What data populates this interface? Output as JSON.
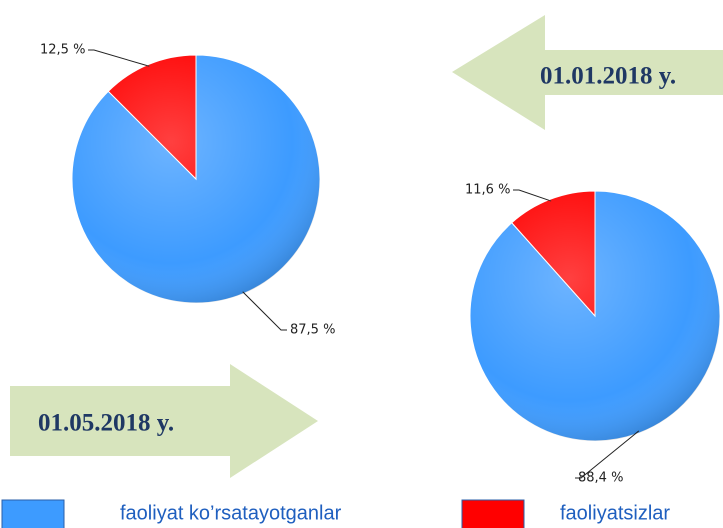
{
  "chart_data": [
    {
      "type": "pie",
      "annotation": "01.05.2018 y.",
      "values": [
        87.5,
        12.5
      ],
      "value_labels": [
        "87,5 %",
        "12,5 %"
      ]
    },
    {
      "type": "pie",
      "annotation": "01.01.2018 y.",
      "values": [
        88.4,
        11.6
      ],
      "value_labels": [
        "88,4 %",
        "11,6 %"
      ]
    }
  ],
  "legend": {
    "labels": [
      "faoliyat ko’rsatayotganlar",
      "faoliyatsizlar"
    ],
    "colors": [
      "#3d9bff",
      "#ff0000"
    ]
  }
}
